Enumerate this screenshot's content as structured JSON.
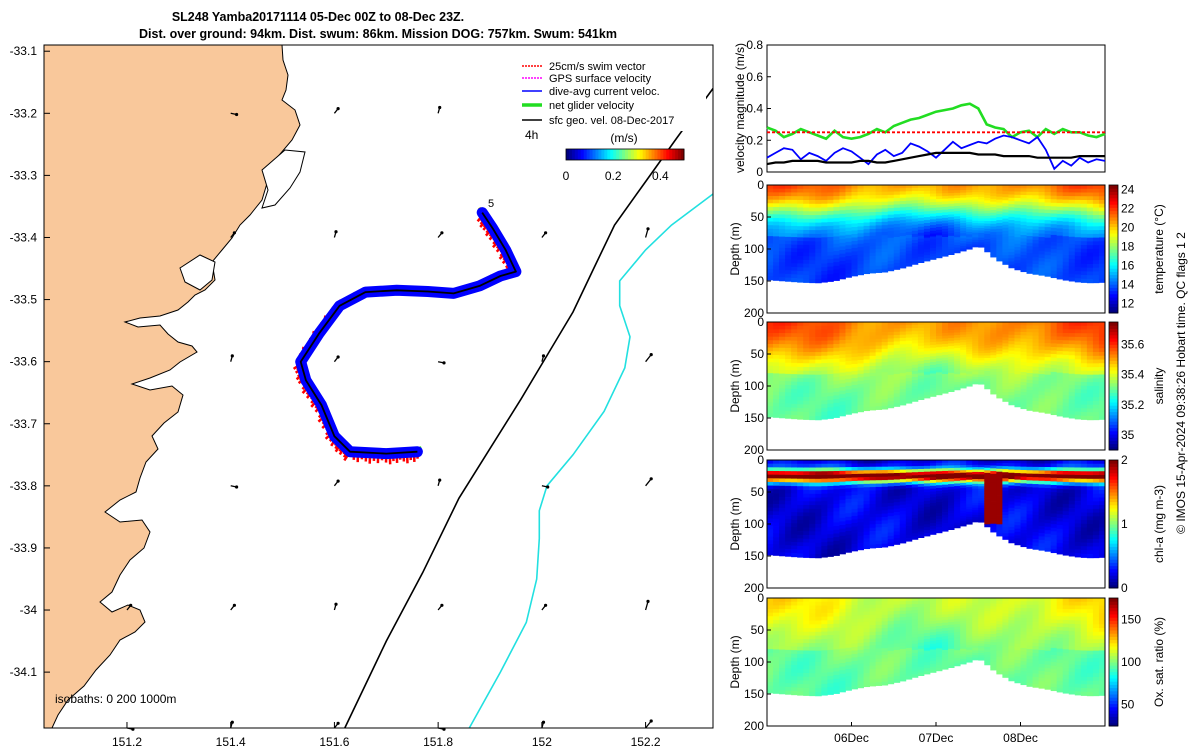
{
  "title_line1": "SL248 Yamba20171114 05-Dec 00Z to 08-Dec 23Z.",
  "title_line2": "Dist. over ground: 94km. Dist. swum: 86km. Mission DOG: 757km. Swum: 541km",
  "copyright": "© IMOS 15-Apr-2024 09:38:26 Hobart time. QC flags 1  2",
  "colors": {
    "land": "#f9c89b",
    "swim_vector": "#ff0000",
    "gps_velocity": "#ff00ff",
    "dive_avg": "#0000ff",
    "net_glider": "#22dd22",
    "sfc_geo": "#000000",
    "isobath_200": "#000000",
    "isobath_1000": "#22e0e0"
  },
  "chart_data": [
    {
      "type": "map",
      "name": "glider-track-map",
      "xticks": [
        "151.2",
        "151.4",
        "151.6",
        "151.8",
        "152",
        "152.2"
      ],
      "xtick_values": [
        151.2,
        151.4,
        151.6,
        151.8,
        152.0,
        152.2
      ],
      "yticks": [
        "-33.1",
        "-33.2",
        "-33.3",
        "-33.4",
        "-33.5",
        "-33.6",
        "-33.7",
        "-33.8",
        "-33.9",
        "-34",
        "-34.1"
      ],
      "ytick_values": [
        -33.1,
        -33.2,
        -33.3,
        -33.4,
        -33.5,
        -33.6,
        -33.7,
        -33.8,
        -33.9,
        -34.0,
        -34.1
      ],
      "xlim": [
        151.04,
        152.33
      ],
      "ylim": [
        -34.19,
        -33.09
      ],
      "legend": [
        {
          "label": "25cm/s swim vector",
          "key": "swim_vector"
        },
        {
          "label": "GPS surface velocity",
          "key": "gps_velocity"
        },
        {
          "label": "dive-avg current veloc.",
          "key": "dive_avg"
        },
        {
          "label": "net glider velocity",
          "key": "net_glider"
        },
        {
          "label": "sfc geo. vel. 08-Dec-2017",
          "key": "sfc_geo"
        }
      ],
      "interval_label": "4h",
      "colorbar_unit": "(m/s)",
      "colorbar_ticks": [
        "0",
        "0.2",
        "0.4"
      ],
      "colorbar_values": [
        0,
        0.2,
        0.4
      ],
      "colorbar_range": [
        0,
        0.5
      ],
      "isobaths_label": "isobaths: 0   200  1000m",
      "track_start_label": "5",
      "track": [
        [
          151.76,
          -33.745
        ],
        [
          151.7,
          -33.748
        ],
        [
          151.63,
          -33.745
        ],
        [
          151.6,
          -33.72
        ],
        [
          151.575,
          -33.67
        ],
        [
          151.545,
          -33.63
        ],
        [
          151.535,
          -33.6
        ],
        [
          151.57,
          -33.555
        ],
        [
          151.61,
          -33.51
        ],
        [
          151.66,
          -33.488
        ],
        [
          151.72,
          -33.485
        ],
        [
          151.78,
          -33.487
        ],
        [
          151.83,
          -33.49
        ],
        [
          151.88,
          -33.478
        ],
        [
          151.92,
          -33.462
        ],
        [
          151.95,
          -33.455
        ],
        [
          151.93,
          -33.42
        ],
        [
          151.905,
          -33.385
        ],
        [
          151.885,
          -33.36
        ]
      ],
      "isobath_200": [
        [
          151.62,
          -34.19
        ],
        [
          151.7,
          -34.05
        ],
        [
          151.77,
          -33.94
        ],
        [
          151.84,
          -33.82
        ],
        [
          151.9,
          -33.74
        ],
        [
          151.96,
          -33.66
        ],
        [
          152.01,
          -33.59
        ],
        [
          152.06,
          -33.52
        ],
        [
          152.1,
          -33.45
        ],
        [
          152.14,
          -33.38
        ],
        [
          152.2,
          -33.31
        ],
        [
          152.26,
          -33.24
        ],
        [
          152.33,
          -33.16
        ]
      ],
      "isobath_1000": [
        [
          151.86,
          -34.19
        ],
        [
          151.92,
          -34.1
        ],
        [
          151.97,
          -34.02
        ],
        [
          151.99,
          -33.95
        ],
        [
          151.995,
          -33.885
        ],
        [
          151.995,
          -33.84
        ],
        [
          152.01,
          -33.8
        ],
        [
          152.06,
          -33.75
        ],
        [
          152.12,
          -33.68
        ],
        [
          152.16,
          -33.61
        ],
        [
          152.17,
          -33.56
        ],
        [
          152.15,
          -33.51
        ],
        [
          152.15,
          -33.47
        ],
        [
          152.2,
          -33.42
        ],
        [
          152.25,
          -33.38
        ],
        [
          152.33,
          -33.33
        ]
      ]
    },
    {
      "type": "line",
      "name": "velocity-magnitude",
      "ylabel": "velocity magnitude (m/s)",
      "ylim": [
        0,
        0.8
      ],
      "yticks": [
        "0",
        "0.2",
        "0.4",
        "0.6",
        "0.8"
      ],
      "ytick_values": [
        0,
        0.2,
        0.4,
        0.6,
        0.8
      ],
      "xlim": [
        0,
        4
      ],
      "x": [
        0,
        0.1,
        0.2,
        0.3,
        0.4,
        0.5,
        0.6,
        0.7,
        0.8,
        0.9,
        1.0,
        1.1,
        1.2,
        1.3,
        1.4,
        1.5,
        1.6,
        1.7,
        1.8,
        1.9,
        2.0,
        2.1,
        2.2,
        2.3,
        2.4,
        2.5,
        2.6,
        2.7,
        2.8,
        2.9,
        3.0,
        3.1,
        3.2,
        3.3,
        3.4,
        3.5,
        3.6,
        3.7,
        3.8,
        3.9,
        4.0
      ],
      "series": [
        {
          "key": "net_glider",
          "values": [
            0.28,
            0.26,
            0.22,
            0.24,
            0.27,
            0.25,
            0.23,
            0.21,
            0.26,
            0.22,
            0.21,
            0.22,
            0.24,
            0.27,
            0.25,
            0.29,
            0.31,
            0.33,
            0.34,
            0.36,
            0.38,
            0.39,
            0.4,
            0.42,
            0.43,
            0.4,
            0.3,
            0.28,
            0.27,
            0.22,
            0.25,
            0.26,
            0.22,
            0.27,
            0.24,
            0.27,
            0.25,
            0.25,
            0.23,
            0.22,
            0.24
          ]
        },
        {
          "key": "swim_vector",
          "values": [
            0.25,
            0.25,
            0.25,
            0.25,
            0.25,
            0.25,
            0.25,
            0.25,
            0.25,
            0.25,
            0.25,
            0.25,
            0.25,
            0.25,
            0.25,
            0.25,
            0.25,
            0.25,
            0.25,
            0.25,
            0.25,
            0.25,
            0.25,
            0.25,
            0.25,
            0.25,
            0.25,
            0.25,
            0.25,
            0.25,
            0.25,
            0.25,
            0.25,
            0.25,
            0.25,
            0.25,
            0.25,
            0.25,
            0.25,
            0.25,
            0.25
          ]
        },
        {
          "key": "dive_avg",
          "values": [
            0.09,
            0.12,
            0.15,
            0.14,
            0.08,
            0.12,
            0.1,
            0.07,
            0.12,
            0.15,
            0.13,
            0.09,
            0.05,
            0.11,
            0.14,
            0.1,
            0.12,
            0.18,
            0.16,
            0.13,
            0.09,
            0.14,
            0.19,
            0.15,
            0.17,
            0.19,
            0.18,
            0.21,
            0.23,
            0.22,
            0.2,
            0.18,
            0.22,
            0.14,
            0.02,
            0.07,
            0.04,
            0.09,
            0.06,
            0.08,
            0.07
          ]
        },
        {
          "key": "sfc_geo",
          "values": [
            0.05,
            0.06,
            0.06,
            0.07,
            0.07,
            0.07,
            0.07,
            0.06,
            0.06,
            0.06,
            0.06,
            0.07,
            0.07,
            0.06,
            0.06,
            0.07,
            0.08,
            0.09,
            0.1,
            0.11,
            0.12,
            0.12,
            0.12,
            0.12,
            0.12,
            0.11,
            0.11,
            0.11,
            0.1,
            0.1,
            0.1,
            0.1,
            0.09,
            0.09,
            0.09,
            0.09,
            0.09,
            0.1,
            0.1,
            0.1,
            0.1
          ]
        }
      ]
    },
    {
      "type": "heatmap",
      "name": "temperature-section",
      "ylabel": "Depth (m)",
      "cbar_label": "temperature (°C)",
      "yticks": [
        "0",
        "50",
        "100",
        "150",
        "200"
      ],
      "ytick_values": [
        0,
        50,
        100,
        150,
        200
      ],
      "cbar_ticks": [
        "12",
        "14",
        "16",
        "18",
        "20",
        "22",
        "24"
      ],
      "cbar_values": [
        12,
        14,
        16,
        18,
        20,
        22,
        24
      ],
      "clim": [
        11,
        24.5
      ],
      "palette": "jet",
      "surface": 21.5,
      "deep": 13.5,
      "mixed_layer_m": 40,
      "gradient_scale_m": 45
    },
    {
      "type": "heatmap",
      "name": "salinity-section",
      "ylabel": "Depth (m)",
      "cbar_label": "salinity",
      "yticks": [
        "0",
        "50",
        "100",
        "150",
        "200"
      ],
      "ytick_values": [
        0,
        50,
        100,
        150,
        200
      ],
      "cbar_ticks": [
        "35",
        "35.2",
        "35.4",
        "35.6"
      ],
      "cbar_values": [
        35.0,
        35.2,
        35.4,
        35.6
      ],
      "clim": [
        34.9,
        35.75
      ],
      "palette": "jet",
      "surface": 35.55,
      "deep": 35.3,
      "mixed_layer_m": 55,
      "gradient_scale_m": 55
    },
    {
      "type": "heatmap",
      "name": "chlorophyll-section",
      "ylabel": "Depth (m)",
      "cbar_label": "chl-a (mg m-3)",
      "yticks": [
        "0",
        "50",
        "100",
        "150",
        "200"
      ],
      "ytick_values": [
        0,
        50,
        100,
        150,
        200
      ],
      "cbar_ticks": [
        "0",
        "1",
        "2"
      ],
      "cbar_values": [
        0,
        1,
        2
      ],
      "clim": [
        0,
        2
      ],
      "palette": "jet",
      "surface": 0.9,
      "deep": 0.2,
      "max_depth_m": 25,
      "max_value": 1.95
    },
    {
      "type": "heatmap",
      "name": "oxygen-section",
      "ylabel": "Depth (m)",
      "cbar_label": "Ox. sat. ratio (%)",
      "yticks": [
        "0",
        "50",
        "100",
        "150",
        "200"
      ],
      "ytick_values": [
        0,
        50,
        100,
        150,
        200
      ],
      "cbar_ticks": [
        "50",
        "100",
        "150"
      ],
      "cbar_values": [
        50,
        100,
        150
      ],
      "clim": [
        25,
        175
      ],
      "palette": "jet",
      "surface": 115,
      "deep": 95,
      "mixed_layer_m": 50,
      "gradient_scale_m": 60
    }
  ],
  "sections_x": {
    "xlim": [
      0,
      4
    ],
    "xticks": [
      "06Dec",
      "07Dec",
      "08Dec"
    ],
    "xtick_values": [
      1,
      2,
      3
    ],
    "bottom_profile": [
      [
        0,
        148
      ],
      [
        0.2,
        150
      ],
      [
        0.4,
        152
      ],
      [
        0.6,
        153
      ],
      [
        0.8,
        150
      ],
      [
        1.0,
        143
      ],
      [
        1.2,
        138
      ],
      [
        1.4,
        136
      ],
      [
        1.6,
        130
      ],
      [
        1.8,
        122
      ],
      [
        2.0,
        115
      ],
      [
        2.2,
        108
      ],
      [
        2.4,
        100
      ],
      [
        2.5,
        95
      ],
      [
        2.55,
        98
      ],
      [
        2.7,
        115
      ],
      [
        2.9,
        130
      ],
      [
        3.1,
        138
      ],
      [
        3.3,
        142
      ],
      [
        3.5,
        148
      ],
      [
        3.7,
        152
      ],
      [
        3.85,
        153
      ],
      [
        4.0,
        152
      ]
    ]
  }
}
